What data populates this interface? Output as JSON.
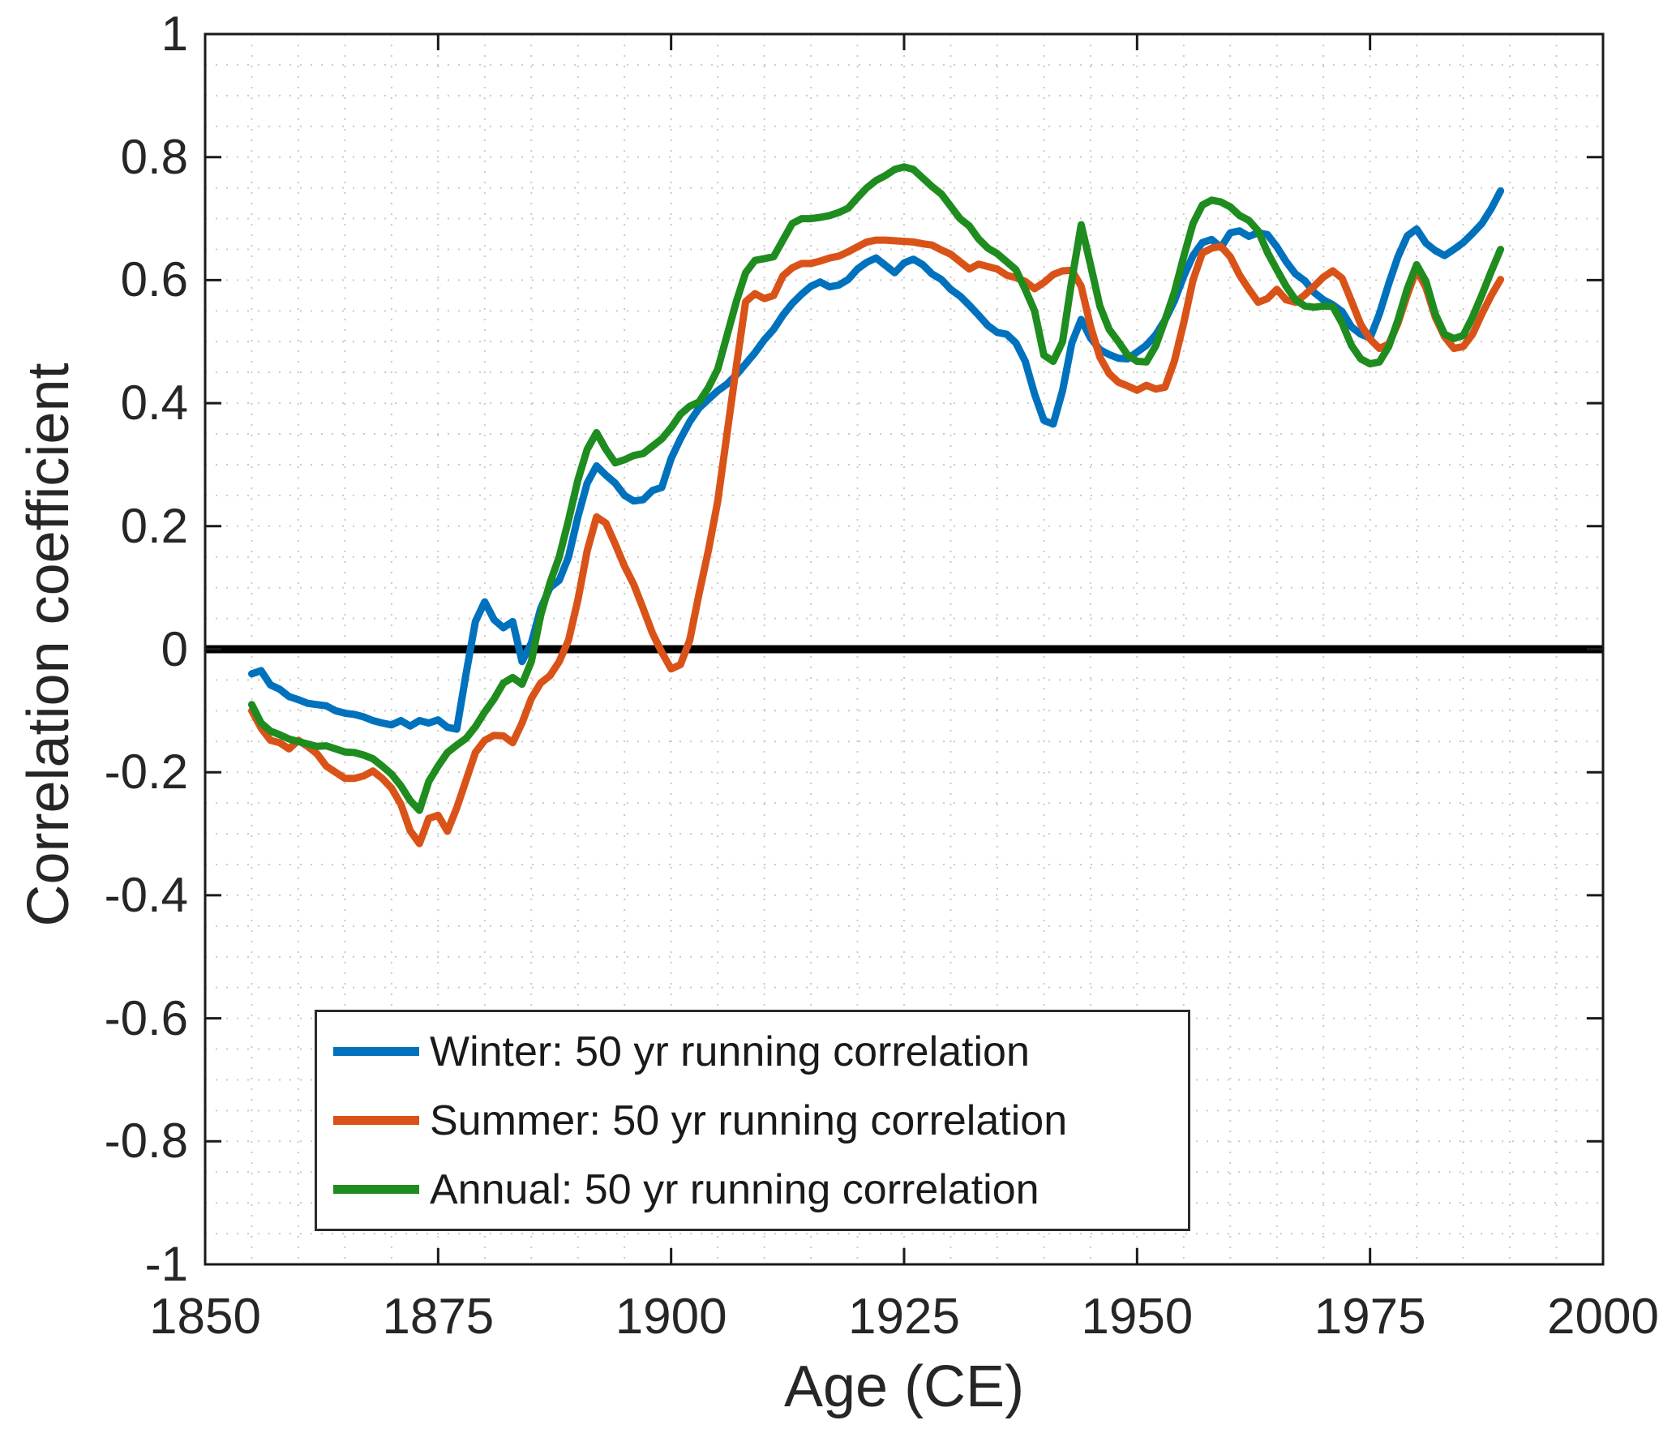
{
  "figure": {
    "background": "#ffffff",
    "text_color": "#262626",
    "axis_color": "#1a1a1a"
  },
  "axes": {
    "xlabel": "Age (CE)",
    "ylabel": "Correlation coefficient",
    "xlim": [
      1850,
      2000
    ],
    "ylim": [
      -1,
      1
    ],
    "x_tick_labels": [
      "1850",
      "1875",
      "1900",
      "1925",
      "1950",
      "1975",
      "2000"
    ],
    "x_tick_values": [
      1850,
      1875,
      1900,
      1925,
      1950,
      1975,
      2000
    ],
    "y_tick_labels": [
      "1",
      "0.8",
      "0.6",
      "0.4",
      "0.2",
      "0",
      "-0.2",
      "-0.4",
      "-0.6",
      "-0.8",
      "-1"
    ],
    "y_tick_values": [
      1,
      0.8,
      0.6,
      0.4,
      0.2,
      0,
      -0.2,
      -0.4,
      -0.6,
      -0.8,
      -1
    ],
    "minor_grid_x_step_years": 5,
    "minor_grid_y_step": 0.05,
    "grid_style": "dotted",
    "grid_color": "#c9c9c9",
    "zero_line_color": "#000000"
  },
  "legend": {
    "position": "lower-left",
    "border_color": "#2b2b2b"
  },
  "chart_data": {
    "type": "line",
    "title": "",
    "xlabel": "Age (CE)",
    "ylabel": "Correlation coefficient",
    "xlim": [
      1850,
      2000
    ],
    "ylim": [
      -1,
      1
    ],
    "grid": true,
    "legend_position": "lower-left",
    "zero_reference_line": true,
    "x_start_year": 1855,
    "x_step_years": 1,
    "series": [
      {
        "name": "Winter: 50 yr running correlation",
        "color": "#0072BD",
        "values": [
          -0.04,
          -0.035,
          -0.058,
          -0.065,
          -0.077,
          -0.082,
          -0.088,
          -0.09,
          -0.092,
          -0.1,
          -0.104,
          -0.106,
          -0.11,
          -0.116,
          -0.12,
          -0.123,
          -0.116,
          -0.125,
          -0.116,
          -0.12,
          -0.115,
          -0.127,
          -0.13,
          -0.04,
          0.045,
          0.077,
          0.048,
          0.035,
          0.045,
          -0.02,
          0.01,
          0.066,
          0.1,
          0.112,
          0.15,
          0.215,
          0.27,
          0.298,
          0.283,
          0.27,
          0.25,
          0.241,
          0.243,
          0.258,
          0.263,
          0.31,
          0.342,
          0.37,
          0.392,
          0.406,
          0.42,
          0.431,
          0.446,
          0.464,
          0.482,
          0.503,
          0.52,
          0.543,
          0.562,
          0.577,
          0.59,
          0.597,
          0.589,
          0.592,
          0.601,
          0.618,
          0.629,
          0.636,
          0.624,
          0.612,
          0.628,
          0.634,
          0.625,
          0.61,
          0.601,
          0.585,
          0.574,
          0.559,
          0.543,
          0.526,
          0.515,
          0.512,
          0.498,
          0.468,
          0.415,
          0.372,
          0.366,
          0.42,
          0.498,
          0.536,
          0.506,
          0.487,
          0.479,
          0.473,
          0.472,
          0.483,
          0.494,
          0.511,
          0.535,
          0.566,
          0.606,
          0.64,
          0.661,
          0.666,
          0.653,
          0.677,
          0.68,
          0.671,
          0.677,
          0.674,
          0.654,
          0.63,
          0.61,
          0.599,
          0.58,
          0.568,
          0.56,
          0.549,
          0.524,
          0.512,
          0.506,
          0.545,
          0.594,
          0.638,
          0.672,
          0.683,
          0.66,
          0.648,
          0.64,
          0.65,
          0.661,
          0.676,
          0.692,
          0.716,
          0.745
        ]
      },
      {
        "name": "Summer: 50 yr running correlation",
        "color": "#D95319",
        "values": [
          -0.1,
          -0.128,
          -0.148,
          -0.152,
          -0.162,
          -0.148,
          -0.158,
          -0.17,
          -0.19,
          -0.2,
          -0.21,
          -0.21,
          -0.206,
          -0.198,
          -0.21,
          -0.226,
          -0.252,
          -0.295,
          -0.316,
          -0.275,
          -0.27,
          -0.296,
          -0.258,
          -0.213,
          -0.168,
          -0.148,
          -0.14,
          -0.141,
          -0.152,
          -0.12,
          -0.08,
          -0.055,
          -0.043,
          -0.02,
          0.015,
          0.08,
          0.16,
          0.215,
          0.205,
          0.171,
          0.135,
          0.105,
          0.066,
          0.026,
          -0.005,
          -0.032,
          -0.025,
          0.015,
          0.09,
          0.16,
          0.24,
          0.35,
          0.46,
          0.565,
          0.578,
          0.57,
          0.575,
          0.607,
          0.62,
          0.627,
          0.627,
          0.631,
          0.636,
          0.639,
          0.646,
          0.654,
          0.662,
          0.665,
          0.665,
          0.664,
          0.663,
          0.662,
          0.659,
          0.657,
          0.649,
          0.642,
          0.63,
          0.618,
          0.626,
          0.622,
          0.618,
          0.608,
          0.604,
          0.598,
          0.586,
          0.596,
          0.609,
          0.615,
          0.616,
          0.59,
          0.525,
          0.475,
          0.448,
          0.434,
          0.428,
          0.421,
          0.429,
          0.423,
          0.426,
          0.468,
          0.53,
          0.6,
          0.644,
          0.652,
          0.655,
          0.638,
          0.608,
          0.585,
          0.564,
          0.57,
          0.585,
          0.568,
          0.564,
          0.576,
          0.59,
          0.605,
          0.615,
          0.603,
          0.566,
          0.528,
          0.504,
          0.489,
          0.496,
          0.53,
          0.576,
          0.617,
          0.588,
          0.54,
          0.508,
          0.489,
          0.492,
          0.512,
          0.545,
          0.575,
          0.601
        ]
      },
      {
        "name": "Annual: 50 yr running correlation",
        "color": "#1E8C1E",
        "values": [
          -0.09,
          -0.12,
          -0.133,
          -0.139,
          -0.146,
          -0.15,
          -0.154,
          -0.158,
          -0.157,
          -0.162,
          -0.167,
          -0.168,
          -0.172,
          -0.178,
          -0.19,
          -0.203,
          -0.222,
          -0.246,
          -0.262,
          -0.215,
          -0.19,
          -0.168,
          -0.156,
          -0.145,
          -0.126,
          -0.102,
          -0.081,
          -0.055,
          -0.046,
          -0.057,
          -0.02,
          0.055,
          0.108,
          0.15,
          0.21,
          0.275,
          0.325,
          0.352,
          0.325,
          0.303,
          0.308,
          0.315,
          0.318,
          0.33,
          0.342,
          0.36,
          0.382,
          0.395,
          0.402,
          0.425,
          0.455,
          0.51,
          0.565,
          0.612,
          0.632,
          0.635,
          0.638,
          0.665,
          0.692,
          0.7,
          0.7,
          0.702,
          0.705,
          0.71,
          0.717,
          0.734,
          0.75,
          0.762,
          0.77,
          0.78,
          0.784,
          0.78,
          0.766,
          0.752,
          0.74,
          0.72,
          0.7,
          0.688,
          0.667,
          0.652,
          0.643,
          0.63,
          0.617,
          0.585,
          0.55,
          0.478,
          0.468,
          0.5,
          0.6,
          0.69,
          0.625,
          0.558,
          0.52,
          0.5,
          0.478,
          0.468,
          0.467,
          0.493,
          0.535,
          0.58,
          0.638,
          0.692,
          0.722,
          0.73,
          0.727,
          0.719,
          0.705,
          0.697,
          0.68,
          0.645,
          0.617,
          0.59,
          0.568,
          0.558,
          0.556,
          0.558,
          0.557,
          0.53,
          0.494,
          0.472,
          0.464,
          0.467,
          0.492,
          0.535,
          0.586,
          0.625,
          0.598,
          0.545,
          0.512,
          0.505,
          0.51,
          0.54,
          0.576,
          0.614,
          0.65
        ]
      }
    ]
  }
}
